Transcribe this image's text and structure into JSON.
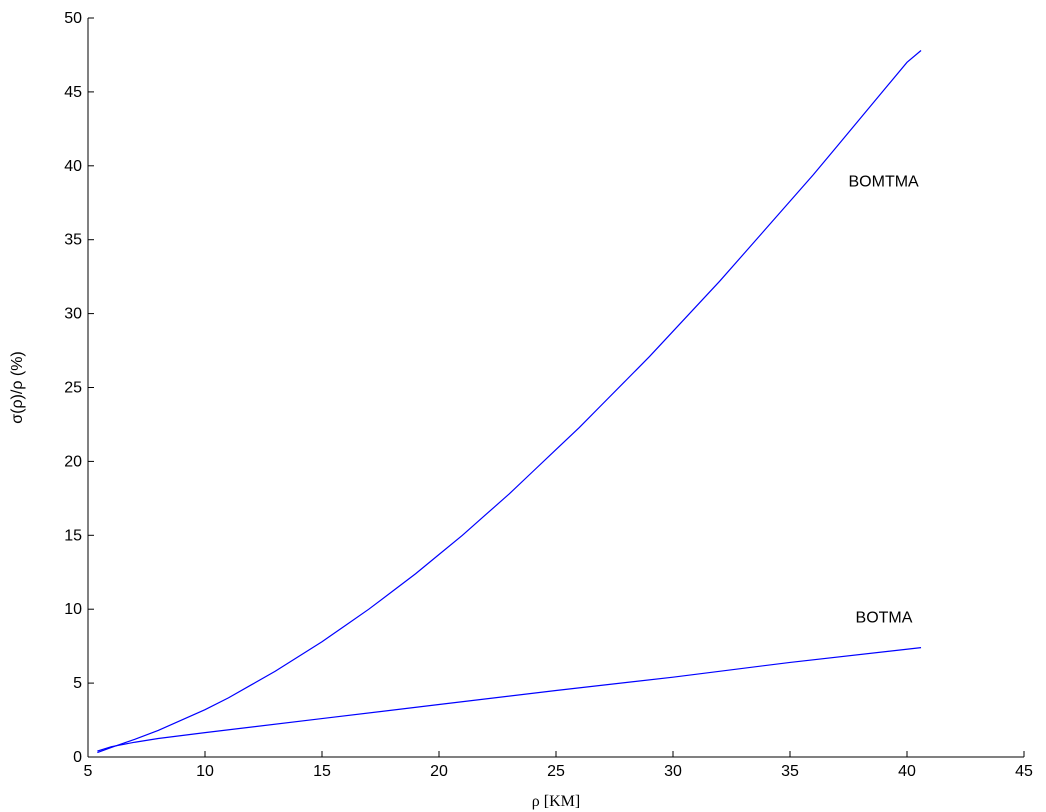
{
  "chart_data": {
    "type": "line",
    "xlabel": "ρ  [KM]",
    "ylabel": "σ(ρ)/ρ (%)",
    "xlim": [
      5,
      45
    ],
    "ylim": [
      0,
      50
    ],
    "xticks": [
      5,
      10,
      15,
      20,
      25,
      30,
      35,
      40,
      45
    ],
    "yticks": [
      0,
      5,
      10,
      15,
      20,
      25,
      30,
      35,
      40,
      45,
      50
    ],
    "grid": false,
    "line_color": "#0000ff",
    "series": [
      {
        "name": "BOMTMA",
        "x": [
          5.4,
          6,
          7,
          8,
          9,
          10,
          11,
          12,
          13,
          14,
          15,
          16,
          17,
          18,
          19,
          20,
          21,
          22,
          23,
          24,
          25,
          26,
          27,
          28,
          29,
          30,
          31,
          32,
          33,
          34,
          35,
          36,
          37,
          38,
          39,
          40,
          40.6
        ],
        "y": [
          0.3,
          0.65,
          1.2,
          1.8,
          2.5,
          3.2,
          4.0,
          4.9,
          5.8,
          6.8,
          7.8,
          8.9,
          10.0,
          11.2,
          12.4,
          13.7,
          15.0,
          16.4,
          17.8,
          19.3,
          20.8,
          22.3,
          23.9,
          25.5,
          27.1,
          28.8,
          30.5,
          32.2,
          34.0,
          35.8,
          37.6,
          39.4,
          41.3,
          43.2,
          45.1,
          47.0,
          47.8
        ],
        "label": "BOMTMA"
      },
      {
        "name": "BOTMA",
        "x": [
          5.4,
          6,
          7,
          8,
          10,
          15,
          20,
          25,
          30,
          35,
          40.6
        ],
        "y": [
          0.4,
          0.7,
          1.0,
          1.25,
          1.65,
          2.6,
          3.55,
          4.5,
          5.4,
          6.4,
          7.4
        ],
        "label": "BOTMA"
      }
    ],
    "annotations": [
      {
        "text": "BOMTMA",
        "x": 37.5,
        "y": 39
      },
      {
        "text": "BOTMA",
        "x": 37.8,
        "y": 9.5
      }
    ]
  }
}
